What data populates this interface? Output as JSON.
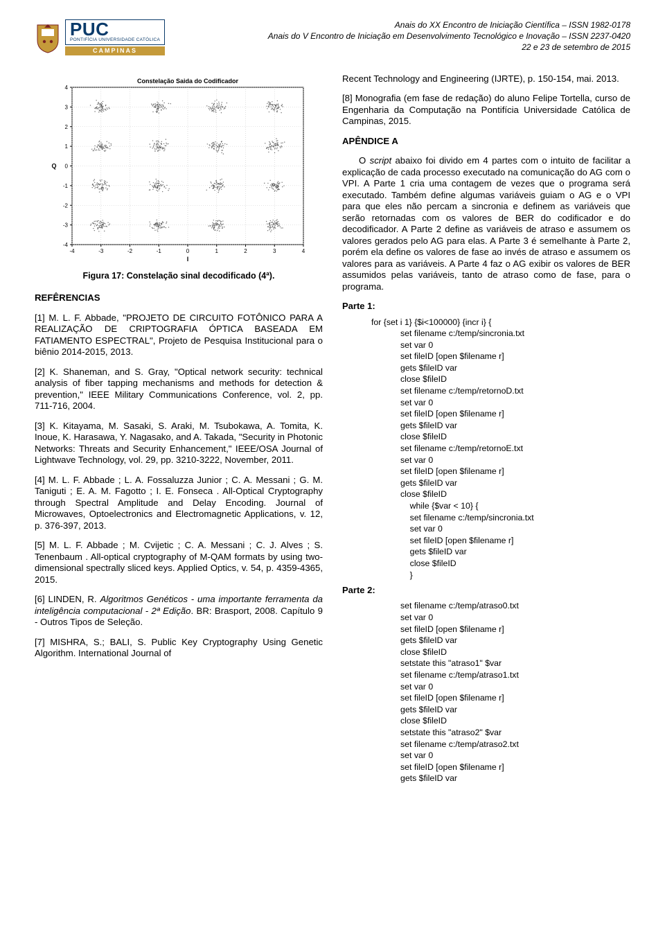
{
  "header": {
    "puc_title": "PUC",
    "puc_sub": "PONTIFÍCIA UNIVERSIDADE CATÓLICA",
    "campinas": "CAMPINAS",
    "line1": "Anais do XX Encontro de Iniciação Científica – ISSN 1982-0178",
    "line2": "Anais do V Encontro de Iniciação em Desenvolvimento Tecnológico e Inovação – ISSN 2237-0420",
    "line3": "22 e 23 de setembro de 2015"
  },
  "chart": {
    "title": "Constelação Saida do Codificador",
    "xlabel": "I",
    "ylabel": "Q",
    "xlim": [
      -4,
      4
    ],
    "ylim": [
      -4,
      4
    ],
    "xticks": [
      -4,
      -3,
      -2,
      -1,
      0,
      1,
      2,
      3,
      4
    ],
    "yticks": [
      -4,
      -3,
      -2,
      -1,
      0,
      1,
      2,
      3,
      4
    ],
    "grid_color": "#c8c8c8",
    "axis_color": "#000000",
    "bg_color": "#ffffff",
    "title_fontsize": 9,
    "tick_fontsize": 8,
    "label_fontsize": 9,
    "cluster_color": "#3a3a3a",
    "cluster_radius": 0.32,
    "cluster_dense": 60,
    "clusters": [
      [
        -3,
        3
      ],
      [
        -1,
        3
      ],
      [
        1,
        3
      ],
      [
        3,
        3
      ],
      [
        -3,
        1
      ],
      [
        -1,
        1
      ],
      [
        1,
        1
      ],
      [
        3,
        1
      ],
      [
        -3,
        -1
      ],
      [
        -1,
        -1
      ],
      [
        1,
        -1
      ],
      [
        3,
        -1
      ],
      [
        -3,
        -3
      ],
      [
        -1,
        -3
      ],
      [
        1,
        -3
      ],
      [
        3,
        -3
      ]
    ]
  },
  "fig_caption": "Figura 17: Constelação sinal decodificado (4ª).",
  "refs_heading": "REFÊRENCIAS",
  "refs": [
    "[1] M. L. F. Abbade, \"PROJETO DE CIRCUITO FOTÔNICO PARA A REALIZAÇÃO DE CRIPTOGRAFIA ÓPTICA BASEADA EM FATIAMENTO ESPECTRAL\", Projeto de Pesquisa Institucional para o biênio 2014-2015, 2013.",
    "[2] K. Shaneman, and S. Gray, \"Optical network security: technical analysis of fiber tapping mechanisms and methods for detection & prevention,\" IEEE Military Communications Conference, vol. 2, pp. 711-716, 2004.",
    "[3] K. Kitayama, M. Sasaki, S. Araki, M. Tsubokawa, A. Tomita, K. Inoue, K. Harasawa, Y. Nagasako, and A. Takada, \"Security in Photonic Networks: Threats and Security Enhancement,\" IEEE/OSA Journal of Lightwave Technology, vol. 29, pp. 3210-3222, November, 2011.",
    "[4] M. L. F. Abbade ; L. A. Fossaluzza Junior ; C. A. Messani ; G. M. Taniguti ; E. A. M. Fagotto ; I. E. Fonseca . All-Optical Cryptography through Spectral Amplitude and Delay Encoding. Journal of Microwaves, Optoelectronics and Electromagnetic Applications, v. 12, p. 376-397, 2013.",
    "[5] M. L. F. Abbade ; M. Cvijetic ; C. A. Messani ; C. J. Alves ; S. Tenenbaum . All-optical cryptography of M-QAM formats by using two-dimensional spectrally sliced keys. Applied Optics, v. 54, p. 4359-4365, 2015.",
    "[6] LINDEN, R. Algoritmos Genéticos - uma importante ferramenta da inteligência computacional - 2ª Edição. BR: Brasport, 2008. Capítulo 9 - Outros Tipos de Seleção.",
    "[7] MISHRA, S.; BALI, S. Public Key Cryptography Using Genetic Algorithm. International Journal of"
  ],
  "right_top1": "Recent Technology and Engineering (IJRTE), p. 150-154, mai. 2013.",
  "right_top2": "[8] Monografia (em fase de redação) do aluno Felipe Tortella, curso de Engenharia da Computação na Pontifícia Universidade Católica de Campinas, 2015.",
  "appendix_heading": "APÊNDICE A",
  "appendix_para_parts": {
    "p1": "O ",
    "p2": "script",
    "p3": " abaixo foi divido em 4 partes com o intuito de facilitar a explicação de cada processo executado na comunicação do AG com o VPI. A Parte 1 cria uma contagem de vezes que o programa será executado. Também define algumas variáveis guiam o AG e o VPI para que eles não percam a sincronia e definem as variáveis que serão retornadas com os valores de BER do codificador e do decodificador. A Parte 2 define as variáveis de atraso e assumem os valores gerados pelo AG para elas. A Parte 3 é semelhante à Parte 2, porém ela define os valores de fase ao invés de atraso e assumem os valores para as variáveis. A Parte 4 faz o AG exibir os valores de BER assumidos pelas variáveis, tanto de atraso como de fase, para o programa."
  },
  "part1_label": "Parte 1:",
  "part2_label": "Parte 2:",
  "code1_head": "for {set i 1} {$i<100000} {incr i} {",
  "code1_body": "set filename c:/temp/sincronia.txt\nset var 0\nset fileID [open $filename r]\ngets $fileID var\nclose $fileID\nset filename c:/temp/retornoD.txt\nset var 0\nset fileID [open $filename r]\ngets $fileID var\nclose $fileID\nset filename c:/temp/retornoE.txt\nset var 0\nset fileID [open $filename r]\ngets $fileID var\nclose $fileID\n    while {$var < 10} {\n    set filename c:/temp/sincronia.txt\n    set var 0\n    set fileID [open $filename r]\n    gets $fileID var\n    close $fileID\n    }",
  "code2_body": "set filename c:/temp/atraso0.txt\nset var 0\nset fileID [open $filename r]\ngets $fileID var\nclose $fileID\nsetstate this \"atraso1\" $var\nset filename c:/temp/atraso1.txt\nset var 0\nset fileID [open $filename r]\ngets $fileID var\nclose $fileID\nsetstate this \"atraso2\" $var\nset filename c:/temp/atraso2.txt\nset var 0\nset fileID [open $filename r]\ngets $fileID var"
}
